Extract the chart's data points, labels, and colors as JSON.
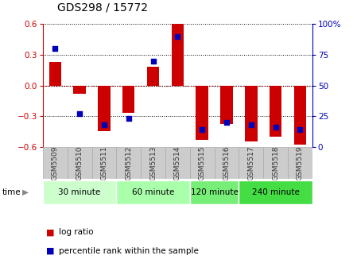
{
  "title": "GDS298 / 15772",
  "samples": [
    "GSM5509",
    "GSM5510",
    "GSM5511",
    "GSM5512",
    "GSM5513",
    "GSM5514",
    "GSM5515",
    "GSM5516",
    "GSM5517",
    "GSM5518",
    "GSM5519"
  ],
  "log_ratio": [
    0.23,
    -0.08,
    -0.45,
    -0.27,
    0.18,
    0.62,
    -0.53,
    -0.38,
    -0.55,
    -0.5,
    -0.58
  ],
  "percentile": [
    80,
    27,
    18,
    23,
    70,
    90,
    14,
    20,
    18,
    16,
    14
  ],
  "time_groups": [
    {
      "label": "30 minute",
      "start": 0,
      "end": 3,
      "color": "#ccffcc"
    },
    {
      "label": "60 minute",
      "start": 3,
      "end": 6,
      "color": "#aaffaa"
    },
    {
      "label": "120 minute",
      "start": 6,
      "end": 8,
      "color": "#77ee77"
    },
    {
      "label": "240 minute",
      "start": 8,
      "end": 11,
      "color": "#44dd44"
    }
  ],
  "ylim_left": [
    -0.6,
    0.6
  ],
  "ylim_right": [
    0,
    100
  ],
  "yticks_left": [
    -0.6,
    -0.3,
    0.0,
    0.3,
    0.6
  ],
  "yticks_right": [
    0,
    25,
    50,
    75,
    100
  ],
  "bar_color": "#cc0000",
  "dot_color": "#0000bb",
  "bar_width": 0.5,
  "dot_size": 22,
  "background_color": "#ffffff",
  "left_axis_color": "#cc0000",
  "right_axis_color": "#0000bb",
  "sample_box_color": "#cccccc",
  "sample_box_edge": "#aaaaaa"
}
